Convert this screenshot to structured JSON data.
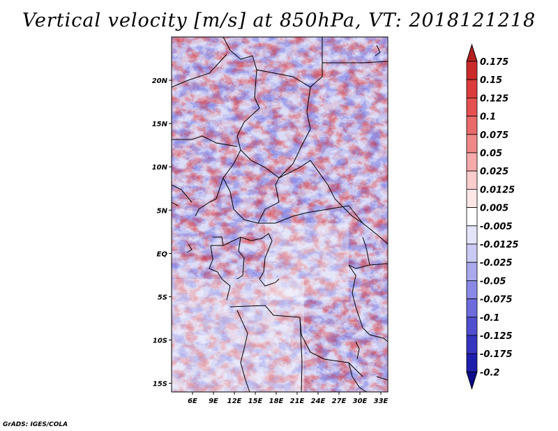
{
  "title": "Vertical velocity [m/s] at 850hPa, VT: 2018121218",
  "credit": "GrADS: IGES/COLA",
  "map": {
    "lon_range": [
      3,
      34
    ],
    "lat_range": [
      -16,
      25
    ],
    "lon_ticks": [
      "6E",
      "9E",
      "12E",
      "15E",
      "18E",
      "21E",
      "24E",
      "27E",
      "30E",
      "33E"
    ],
    "lat_ticks": [
      "20N",
      "15N",
      "10N",
      "5N",
      "EQ",
      "5S",
      "10S",
      "15S"
    ],
    "field": "vertical velocity",
    "level": "850hPa",
    "valid_time": "2018121218"
  },
  "legend": {
    "labels": [
      "0.175",
      "0.15",
      "0.125",
      "0.1",
      "0.075",
      "0.05",
      "0.025",
      "0.0125",
      "0.005",
      "-0.005",
      "-0.0125",
      "-0.025",
      "-0.05",
      "-0.075",
      "-0.1",
      "-0.125",
      "-0.175",
      "-0.2"
    ],
    "colors": [
      "#b41f1f",
      "#cc2a2a",
      "#dc3c3c",
      "#e45050",
      "#e86a6a",
      "#f08888",
      "#f6aaaa",
      "#fbcccc",
      "#fde6e6",
      "#ffffff",
      "#e4e4fb",
      "#cacaf5",
      "#a9a9ee",
      "#8a8ae6",
      "#6c6cdc",
      "#4f4fd0",
      "#3535c2",
      "#1e1eac",
      "#0c0c8c"
    ]
  }
}
